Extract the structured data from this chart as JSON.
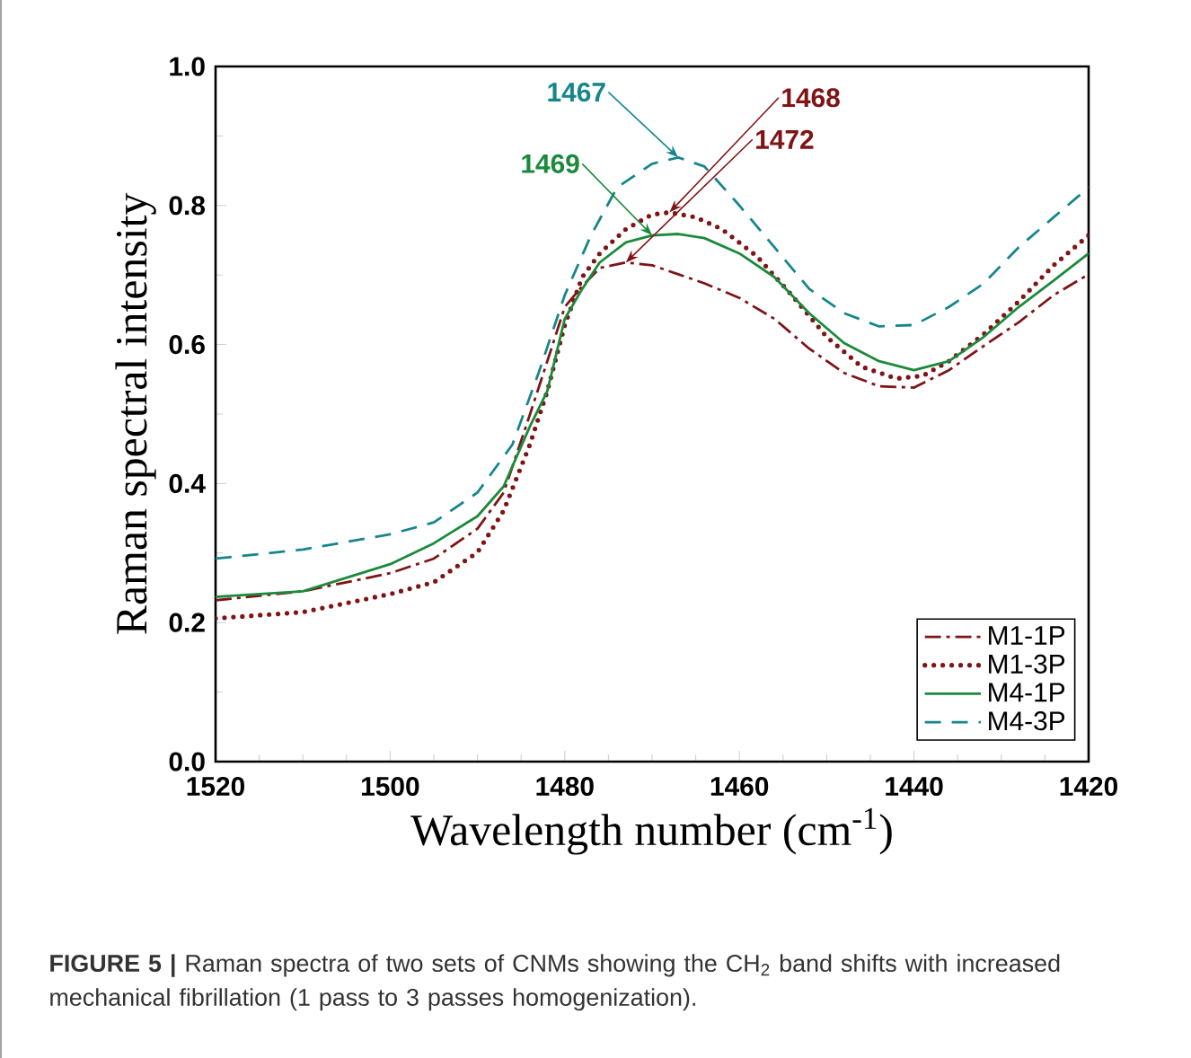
{
  "chart_data": {
    "type": "line",
    "xlabel": "Wavelength number (cm$^{-1}$)",
    "ylabel": "Raman spectral intensity",
    "xlim": [
      1520,
      1420
    ],
    "xticks": [
      1520,
      1500,
      1480,
      1460,
      1440,
      1420
    ],
    "ylim": [
      0,
      1
    ],
    "yticks": [
      {
        "value": 0,
        "label": "0.0"
      },
      {
        "value": 0.2,
        "label": "0.2"
      },
      {
        "value": 0.4,
        "label": "0.4"
      },
      {
        "value": 0.6,
        "label": "0.6"
      },
      {
        "value": 0.8,
        "label": "0.8"
      },
      {
        "value": 1,
        "label": "1.0"
      }
    ],
    "grid": false,
    "legend": "bottom right",
    "series": [
      {
        "name": "M1-1P",
        "color": "#7f1416",
        "line_style": "dashdot",
        "x": [
          1520,
          1510,
          1500,
          1495,
          1490,
          1487,
          1484,
          1482,
          1480,
          1478,
          1476,
          1473,
          1470,
          1467,
          1464,
          1460,
          1456,
          1452,
          1448,
          1444,
          1440,
          1436,
          1432,
          1428,
          1424,
          1420
        ],
        "values": [
          0.232,
          0.245,
          0.271,
          0.292,
          0.335,
          0.387,
          0.499,
          0.576,
          0.654,
          0.684,
          0.71,
          0.718,
          0.714,
          0.701,
          0.688,
          0.667,
          0.637,
          0.594,
          0.559,
          0.54,
          0.538,
          0.563,
          0.598,
          0.632,
          0.671,
          0.701
        ]
      },
      {
        "name": "M1-3P",
        "color": "#7f1416",
        "line_style": "dotted",
        "x": [
          1520,
          1510,
          1500,
          1495,
          1490,
          1487,
          1484,
          1482,
          1480,
          1478,
          1476,
          1473,
          1470,
          1468,
          1465,
          1462,
          1458,
          1454,
          1450,
          1446,
          1442,
          1439,
          1436,
          1432,
          1428,
          1424,
          1420
        ],
        "values": [
          0.206,
          0.215,
          0.241,
          0.258,
          0.301,
          0.361,
          0.456,
          0.533,
          0.628,
          0.697,
          0.731,
          0.766,
          0.787,
          0.79,
          0.783,
          0.766,
          0.727,
          0.671,
          0.611,
          0.568,
          0.551,
          0.555,
          0.576,
          0.615,
          0.662,
          0.714,
          0.757
        ]
      },
      {
        "name": "M4-1P",
        "color": "#1b8a3c",
        "line_style": "solid",
        "x": [
          1520,
          1510,
          1500,
          1495,
          1490,
          1487,
          1484,
          1482,
          1480,
          1478,
          1476,
          1473,
          1470,
          1467,
          1464,
          1460,
          1456,
          1452,
          1448,
          1444,
          1440,
          1436,
          1432,
          1428,
          1424,
          1420
        ],
        "values": [
          0.237,
          0.245,
          0.284,
          0.314,
          0.353,
          0.396,
          0.482,
          0.533,
          0.637,
          0.68,
          0.718,
          0.747,
          0.757,
          0.759,
          0.753,
          0.731,
          0.697,
          0.645,
          0.602,
          0.576,
          0.563,
          0.576,
          0.611,
          0.654,
          0.692,
          0.731
        ]
      },
      {
        "name": "M4-3P",
        "color": "#16868c",
        "line_style": "dashed",
        "x": [
          1520,
          1510,
          1500,
          1495,
          1490,
          1486,
          1483,
          1480,
          1477,
          1474,
          1470,
          1467,
          1464,
          1460,
          1456,
          1452,
          1448,
          1444,
          1440,
          1436,
          1432,
          1428,
          1424,
          1420
        ],
        "values": [
          0.292,
          0.305,
          0.327,
          0.344,
          0.387,
          0.456,
          0.559,
          0.671,
          0.757,
          0.826,
          0.86,
          0.869,
          0.856,
          0.8,
          0.74,
          0.68,
          0.645,
          0.626,
          0.628,
          0.654,
          0.688,
          0.74,
          0.783,
          0.826
        ]
      }
    ],
    "annotations": [
      {
        "text": "1467",
        "x": 1467,
        "y": 0.869
      },
      {
        "text": "1469",
        "x": 1470,
        "y": 0.757
      },
      {
        "text": "1468",
        "x": 1468,
        "y": 0.79
      },
      {
        "text": "1472",
        "x": 1473,
        "y": 0.718
      },
      "**FIGURE 5 |** Raman spectra of two sets of CNMs showing the CH$_{2}$ band shifts with increased mechanical fibrillation (1 pass to 3 passes homogenization)."
    ]
  }
}
